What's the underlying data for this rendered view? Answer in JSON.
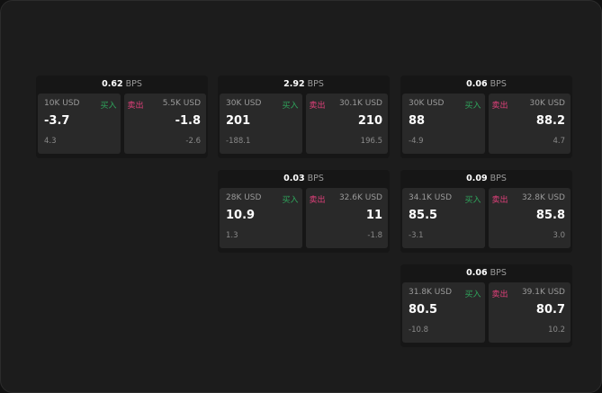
{
  "unit": "BPS",
  "buy_label": "买入",
  "sell_label": "卖出",
  "colors": {
    "buy": "#2fa55c",
    "sell": "#e0407a"
  },
  "cards": [
    {
      "spread": "0.62",
      "bid": {
        "size": "10K USD",
        "price": "-3.7",
        "change": "4.3"
      },
      "ask": {
        "size": "5.5K USD",
        "price": "-1.8",
        "change": "-2.6"
      }
    },
    {
      "spread": "2.92",
      "bid": {
        "size": "30K USD",
        "price": "201",
        "change": "-188.1"
      },
      "ask": {
        "size": "30.1K USD",
        "price": "210",
        "change": "196.5"
      }
    },
    {
      "spread": "0.06",
      "bid": {
        "size": "30K USD",
        "price": "88",
        "change": "-4.9"
      },
      "ask": {
        "size": "30K USD",
        "price": "88.2",
        "change": "4.7"
      }
    },
    {
      "spread": "0.03",
      "bid": {
        "size": "28K USD",
        "price": "10.9",
        "change": "1.3"
      },
      "ask": {
        "size": "32.6K USD",
        "price": "11",
        "change": "-1.8"
      }
    },
    {
      "spread": "0.09",
      "bid": {
        "size": "34.1K USD",
        "price": "85.5",
        "change": "-3.1"
      },
      "ask": {
        "size": "32.8K USD",
        "price": "85.8",
        "change": "3.0"
      }
    },
    {
      "spread": "0.06",
      "bid": {
        "size": "31.8K USD",
        "price": "80.5",
        "change": "-10.8"
      },
      "ask": {
        "size": "39.1K USD",
        "price": "80.7",
        "change": "10.2"
      }
    }
  ]
}
